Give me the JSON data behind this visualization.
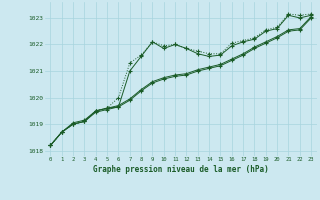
{
  "title": "Graphe pression niveau de la mer (hPa)",
  "background_color": "#cce8f0",
  "grid_color": "#a8d4de",
  "line_color": "#1a5c28",
  "xlim": [
    -0.5,
    23.5
  ],
  "ylim": [
    1017.8,
    1023.6
  ],
  "yticks": [
    1018,
    1019,
    1020,
    1021,
    1022,
    1023
  ],
  "xticks": [
    0,
    1,
    2,
    3,
    4,
    5,
    6,
    7,
    8,
    9,
    10,
    11,
    12,
    13,
    14,
    15,
    16,
    17,
    18,
    19,
    20,
    21,
    22,
    23
  ],
  "series_spiky": [
    1018.2,
    1018.7,
    1019.0,
    1019.1,
    1019.5,
    1019.6,
    1020.0,
    1021.3,
    1021.6,
    1022.1,
    1021.95,
    1022.0,
    1021.85,
    1021.75,
    1021.65,
    1021.65,
    1022.05,
    1022.15,
    1022.25,
    1022.55,
    1022.65,
    1023.15,
    1023.1,
    1023.15
  ],
  "series_spike2": [
    1018.2,
    1018.7,
    1019.0,
    1019.1,
    1019.5,
    1019.6,
    1019.65,
    1021.0,
    1021.55,
    1022.1,
    1021.85,
    1022.0,
    1021.85,
    1021.65,
    1021.55,
    1021.6,
    1021.95,
    1022.1,
    1022.2,
    1022.5,
    1022.6,
    1023.1,
    1023.0,
    1023.1
  ],
  "series_smooth1": [
    1018.2,
    1018.7,
    1019.05,
    1019.15,
    1019.5,
    1019.6,
    1019.7,
    1019.95,
    1020.3,
    1020.6,
    1020.75,
    1020.85,
    1020.9,
    1021.05,
    1021.15,
    1021.25,
    1021.45,
    1021.65,
    1021.9,
    1022.1,
    1022.3,
    1022.55,
    1022.6,
    1023.05
  ],
  "series_smooth2": [
    1018.2,
    1018.7,
    1019.0,
    1019.1,
    1019.45,
    1019.55,
    1019.65,
    1019.9,
    1020.25,
    1020.55,
    1020.7,
    1020.8,
    1020.85,
    1021.0,
    1021.1,
    1021.2,
    1021.4,
    1021.6,
    1021.85,
    1022.05,
    1022.25,
    1022.5,
    1022.55,
    1023.0
  ]
}
